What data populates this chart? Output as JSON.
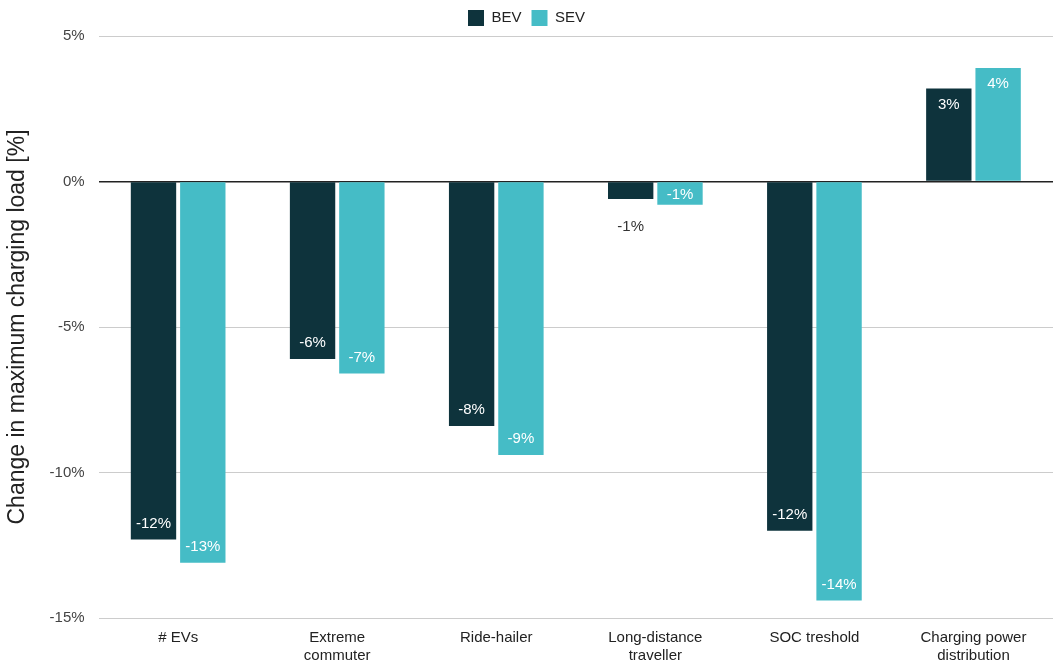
{
  "chart_data": {
    "type": "bar",
    "ylabel": "Change in maximum charging load [%]",
    "categories": [
      "# EVs",
      "Extreme commuter",
      "Ride-hailer",
      "Long-distance traveller",
      "SOC treshold",
      "Charging power distribution"
    ],
    "series": [
      {
        "name": "BEV",
        "color": "#0e333c",
        "values": [
          -12.3,
          -6.1,
          -8.4,
          -0.6,
          -12.0,
          3.2
        ],
        "value_labels": [
          "-12%",
          "-6%",
          "-8%",
          "-1%",
          "-12%",
          "3%"
        ]
      },
      {
        "name": "SEV",
        "color": "#45bcc6",
        "values": [
          -13.1,
          -6.6,
          -9.4,
          -0.8,
          -14.4,
          3.9
        ],
        "value_labels": [
          "-13%",
          "-7%",
          "-9%",
          "-1%",
          "-14%",
          "4%"
        ]
      }
    ],
    "ylim": [
      -15,
      5
    ],
    "yticks": [
      {
        "value": -15,
        "label": "-15%"
      },
      {
        "value": -10,
        "label": "-10%"
      },
      {
        "value": -5,
        "label": "-5%"
      },
      {
        "value": 0,
        "label": "0%"
      },
      {
        "value": 5,
        "label": "5%"
      }
    ],
    "grid": "y",
    "legend": "top"
  }
}
